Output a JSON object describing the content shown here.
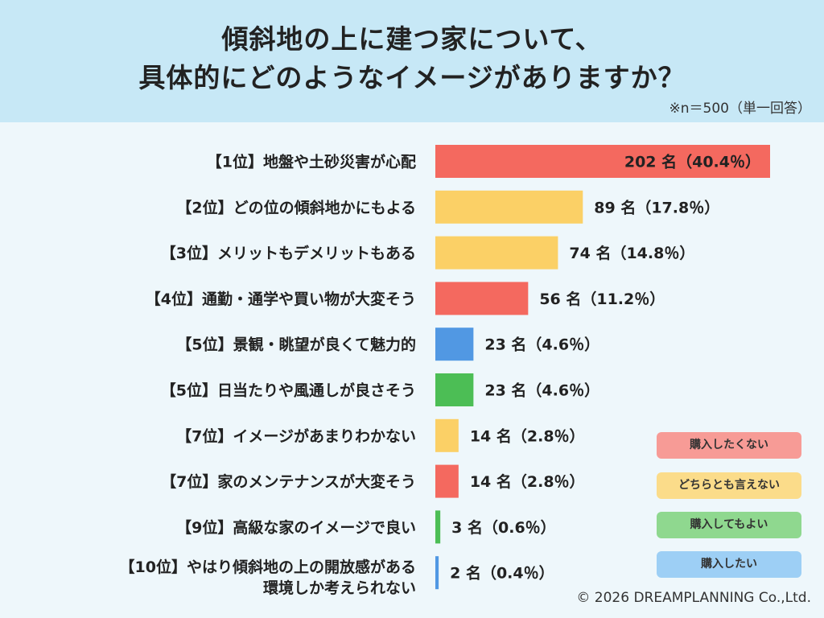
{
  "title_lines": [
    "傾斜地の上に建つ家について、",
    "具体的にどのようなイメージがありますか？"
  ],
  "sample_note": "※n＝500（単一回答）",
  "copyright": "© 2026 DREAMPLANNING Co.,Ltd.",
  "colors": {
    "購入したくない": "#f4695f",
    "どちらとも言えない": "#fbd066",
    "購入してもよい": "#4cbe55",
    "購入したい": "#5198e3"
  },
  "chart_data": {
    "type": "bar",
    "orientation": "horizontal",
    "categories": [
      "【1位】地盤や土砂災害が心配",
      "【2位】どの位の傾斜地かにもよる",
      "【3位】メリットもデメリットもある",
      "【4位】通勤・通学や買い物が大変そう",
      "【5位】景観・眺望が良くて魅力的",
      "【5位】日当たりや風通しが良さそう",
      "【7位】イメージがあまりわかない",
      "【7位】家のメンテナンスが大変そう",
      "【9位】高級な家のイメージで良い",
      "【10位】やはり傾斜地の上の開放感がある環境しか考えられない"
    ],
    "category_lines": [
      [
        "【1位】地盤や土砂災害が心配"
      ],
      [
        "【2位】どの位の傾斜地かにもよる"
      ],
      [
        "【3位】メリットもデメリットもある"
      ],
      [
        "【4位】通勤・通学や買い物が大変そう"
      ],
      [
        "【5位】景観・眺望が良くて魅力的"
      ],
      [
        "【5位】日当たりや風通しが良さそう"
      ],
      [
        "【7位】イメージがあまりわかない"
      ],
      [
        "【7位】家のメンテナンスが大変そう"
      ],
      [
        "【9位】高級な家のイメージで良い"
      ],
      [
        "【10位】やはり傾斜地の上の開放感がある",
        "環境しか考えられない"
      ]
    ],
    "values": [
      202,
      89,
      74,
      56,
      23,
      23,
      14,
      14,
      3,
      2
    ],
    "percentages": [
      40.4,
      17.8,
      14.8,
      11.2,
      4.6,
      4.6,
      2.8,
      2.8,
      0.6,
      0.4
    ],
    "value_labels": [
      "202 名（40.4％）",
      "89 名（17.8％）",
      "74 名（14.8％）",
      "56 名（11.2％）",
      "23 名（4.6％）",
      "23 名（4.6％）",
      "14 名（2.8％）",
      "14 名（2.8％）",
      "3 名（0.6％）",
      "2 名（0.4％）"
    ],
    "groups": [
      "購入したくない",
      "どちらとも言えない",
      "どちらとも言えない",
      "購入したくない",
      "購入したい",
      "購入してもよい",
      "どちらとも言えない",
      "購入したくない",
      "購入してもよい",
      "購入したい"
    ],
    "legend": [
      "購入したくない",
      "どちらとも言えない",
      "購入してもよい",
      "購入したい"
    ],
    "legend_position": "bottom-right",
    "grid": false
  }
}
